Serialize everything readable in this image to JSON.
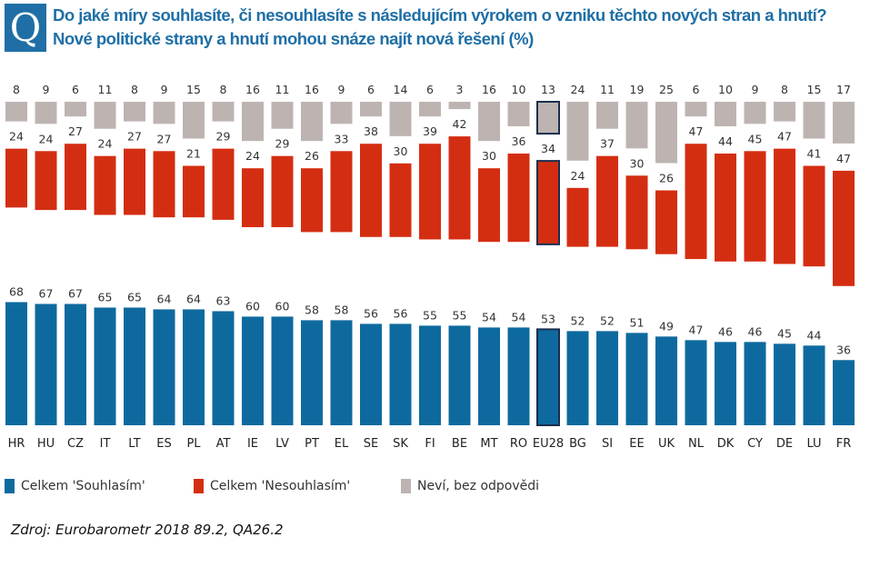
{
  "header": {
    "badge": "Q",
    "title": "Do jaké míry souhlasíte, či nesouhlasíte s následujícím výrokem o vzniku těchto nových stran a hnutí? Nové politické strany a hnutí mohou snáze najít nová řešení (%)"
  },
  "colors": {
    "agree": "#0e6a9e",
    "disagree": "#d42e12",
    "dontknow": "#bdb4b1",
    "highlight_border": "#1a2f4f"
  },
  "chart_data": {
    "type": "bar",
    "stacking": "separate columns per category (diverging): agree bars rise from baseline, disagree and don't-know bars hang below the top",
    "categories": [
      "HR",
      "HU",
      "CZ",
      "IT",
      "LT",
      "ES",
      "PL",
      "AT",
      "IE",
      "LV",
      "PT",
      "EL",
      "SE",
      "SK",
      "FI",
      "BE",
      "MT",
      "RO",
      "EU28",
      "BG",
      "SI",
      "EE",
      "UK",
      "NL",
      "DK",
      "CY",
      "DE",
      "LU",
      "FR"
    ],
    "highlight": "EU28",
    "series": [
      {
        "name": "Celkem 'Souhlasím'",
        "values": [
          68,
          67,
          67,
          65,
          65,
          64,
          64,
          63,
          60,
          60,
          58,
          58,
          56,
          56,
          55,
          55,
          54,
          54,
          53,
          52,
          52,
          51,
          49,
          47,
          46,
          46,
          45,
          44,
          36
        ]
      },
      {
        "name": "Celkem 'Nesouhlasím'",
        "values": [
          24,
          24,
          27,
          24,
          27,
          27,
          21,
          29,
          24,
          29,
          26,
          33,
          38,
          30,
          39,
          42,
          30,
          36,
          34,
          24,
          37,
          30,
          26,
          47,
          44,
          45,
          47,
          41,
          47
        ]
      },
      {
        "name": "Neví, bez odpovědi",
        "values": [
          8,
          9,
          6,
          11,
          8,
          9,
          15,
          8,
          16,
          11,
          16,
          9,
          6,
          14,
          6,
          3,
          16,
          10,
          13,
          24,
          11,
          19,
          25,
          6,
          10,
          9,
          8,
          15,
          17
        ]
      }
    ],
    "ylim": [
      0,
      100
    ],
    "legend": "bottom"
  },
  "source": "Zdroj: Eurobarometr  2018 89.2, QA26.2"
}
